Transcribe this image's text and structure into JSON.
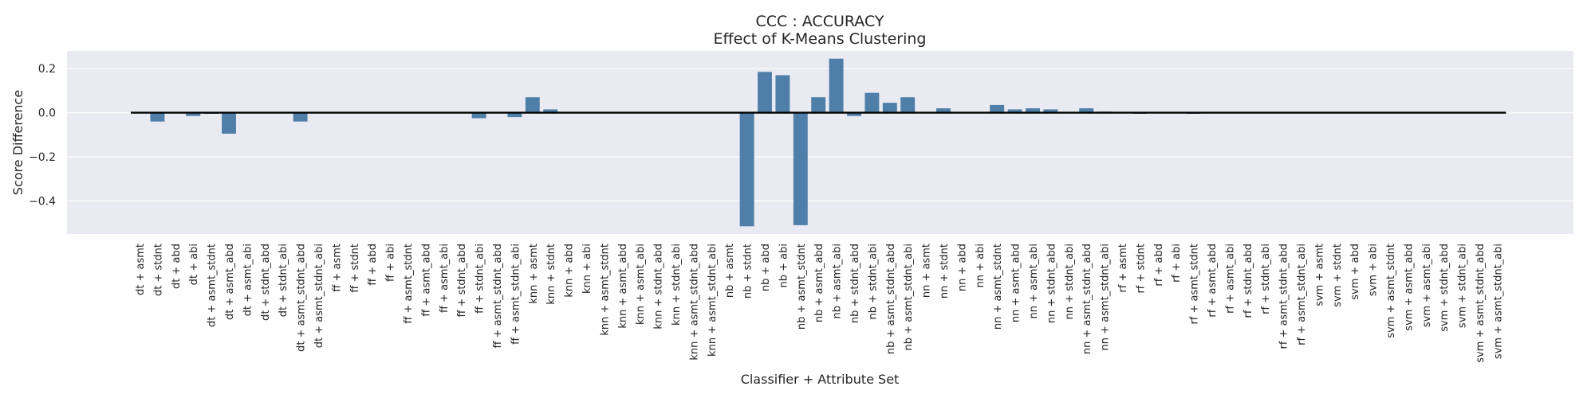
{
  "chart_data": {
    "type": "bar",
    "title": "CCC : ACCURACY",
    "subtitle": "Effect of K-Means Clustering",
    "xlabel": "Classifier + Attribute Set",
    "ylabel": "Score Difference",
    "ylim": [
      -0.55,
      0.28
    ],
    "yticks": [
      0.2,
      0.0,
      -0.2,
      -0.4
    ],
    "ytick_labels": [
      "0.2",
      "0.0",
      "−0.2",
      "−0.4"
    ],
    "grid": true,
    "bar_color": "#4f7fa8",
    "background_color": "#eaeaf2",
    "zero_line": 0.0,
    "categories": [
      "dt + asmt",
      "dt + stdnt",
      "dt + abd",
      "dt + abi",
      "dt + asmt_stdnt",
      "dt + asmt_abd",
      "dt + asmt_abi",
      "dt + stdnt_abd",
      "dt + stdnt_abi",
      "dt + asmt_stdnt_abd",
      "dt + asmt_stdnt_abi",
      "ff + asmt",
      "ff + stdnt",
      "ff + abd",
      "ff + abi",
      "ff + asmt_stdnt",
      "ff + asmt_abd",
      "ff + asmt_abi",
      "ff + stdnt_abd",
      "ff + stdnt_abi",
      "ff + asmt_stdnt_abd",
      "ff + asmt_stdnt_abi",
      "knn + asmt",
      "knn + stdnt",
      "knn + abd",
      "knn + abi",
      "knn + asmt_stdnt",
      "knn + asmt_abd",
      "knn + asmt_abi",
      "knn + stdnt_abd",
      "knn + stdnt_abi",
      "knn + asmt_stdnt_abd",
      "knn + asmt_stdnt_abi",
      "nb + asmt",
      "nb + stdnt",
      "nb + abd",
      "nb + abi",
      "nb + asmt_stdnt",
      "nb + asmt_abd",
      "nb + asmt_abi",
      "nb + stdnt_abd",
      "nb + stdnt_abi",
      "nb + asmt_stdnt_abd",
      "nb + asmt_stdnt_abi",
      "nn + asmt",
      "nn + stdnt",
      "nn + abd",
      "nn + abi",
      "nn + asmt_stdnt",
      "nn + asmt_abd",
      "nn + asmt_abi",
      "nn + stdnt_abd",
      "nn + stdnt_abi",
      "nn + asmt_stdnt_abd",
      "nn + asmt_stdnt_abi",
      "rf + asmt",
      "rf + stdnt",
      "rf + abd",
      "rf + abi",
      "rf + asmt_stdnt",
      "rf + asmt_abd",
      "rf + asmt_abi",
      "rf + stdnt_abd",
      "rf + stdnt_abi",
      "rf + asmt_stdnt_abd",
      "rf + asmt_stdnt_abi",
      "svm + asmt",
      "svm + stdnt",
      "svm + abd",
      "svm + abi",
      "svm + asmt_stdnt",
      "svm + asmt_abd",
      "svm + asmt_abi",
      "svm + stdnt_abd",
      "svm + stdnt_abi",
      "svm + asmt_stdnt_abd",
      "svm + asmt_stdnt_abi"
    ],
    "values": [
      0.0,
      -0.04,
      0.0,
      -0.015,
      -0.005,
      -0.095,
      0.0,
      0.0,
      0.0,
      -0.04,
      0.0,
      0.0,
      0.0,
      0.0,
      0.0,
      0.0,
      0.0,
      0.0,
      0.0,
      -0.025,
      0.0,
      -0.02,
      0.07,
      0.015,
      0.0,
      0.0,
      0.0,
      0.0,
      0.0,
      0.0,
      0.0,
      0.0,
      0.0,
      0.0,
      -0.515,
      0.185,
      0.17,
      -0.51,
      0.07,
      0.245,
      -0.015,
      0.09,
      0.045,
      0.07,
      0.0,
      0.02,
      0.0,
      0.0,
      0.035,
      0.015,
      0.02,
      0.015,
      0.0,
      0.02,
      0.005,
      0.0,
      -0.005,
      0.0,
      0.0,
      -0.005,
      0.0,
      0.0,
      0.0,
      0.0,
      0.0,
      0.0,
      0.0,
      0.0,
      0.0,
      0.0,
      0.0,
      0.0,
      0.0,
      0.0,
      0.0,
      0.0,
      0.0
    ]
  }
}
